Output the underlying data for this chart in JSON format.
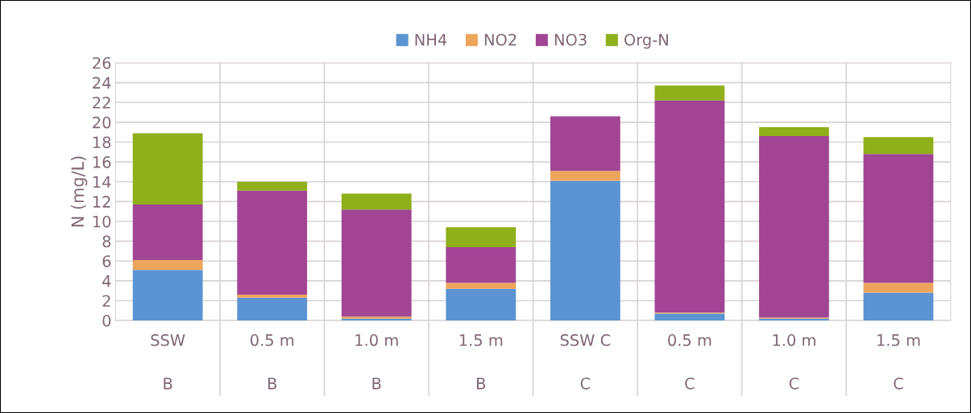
{
  "chart_data": {
    "type": "bar",
    "stacked": true,
    "ylabel": "N (mg/L)",
    "categories": [
      "SSW\n\nB",
      "0.5 m\n\nB",
      "1.0 m\n\nB",
      "1.5 m\n\nB",
      "SSW C\n\nC",
      "0.5 m\n\nC",
      "1.0 m\n\nC",
      "1.5 m\n\nC"
    ],
    "series": [
      {
        "name": "NH4",
        "color": "#5b93d3",
        "values": [
          5.1,
          2.3,
          0.2,
          3.2,
          14.1,
          0.7,
          0.2,
          2.8
        ]
      },
      {
        "name": "NO2",
        "color": "#eda55c",
        "values": [
          1.0,
          0.3,
          0.2,
          0.6,
          1.0,
          0.1,
          0.1,
          1.0
        ]
      },
      {
        "name": "NO3",
        "color": "#a14594",
        "values": [
          5.6,
          10.5,
          10.8,
          3.6,
          5.5,
          21.4,
          18.3,
          13.0
        ]
      },
      {
        "name": "Org-N",
        "color": "#8faf1b",
        "values": [
          7.2,
          0.9,
          1.6,
          2.0,
          0,
          1.5,
          0.9,
          1.7
        ]
      }
    ],
    "ylim": [
      0,
      26
    ],
    "yticks": [
      0,
      2,
      4,
      6,
      8,
      10,
      12,
      14,
      16,
      18,
      20,
      22,
      24,
      26
    ],
    "grid": true,
    "legend": "top"
  }
}
